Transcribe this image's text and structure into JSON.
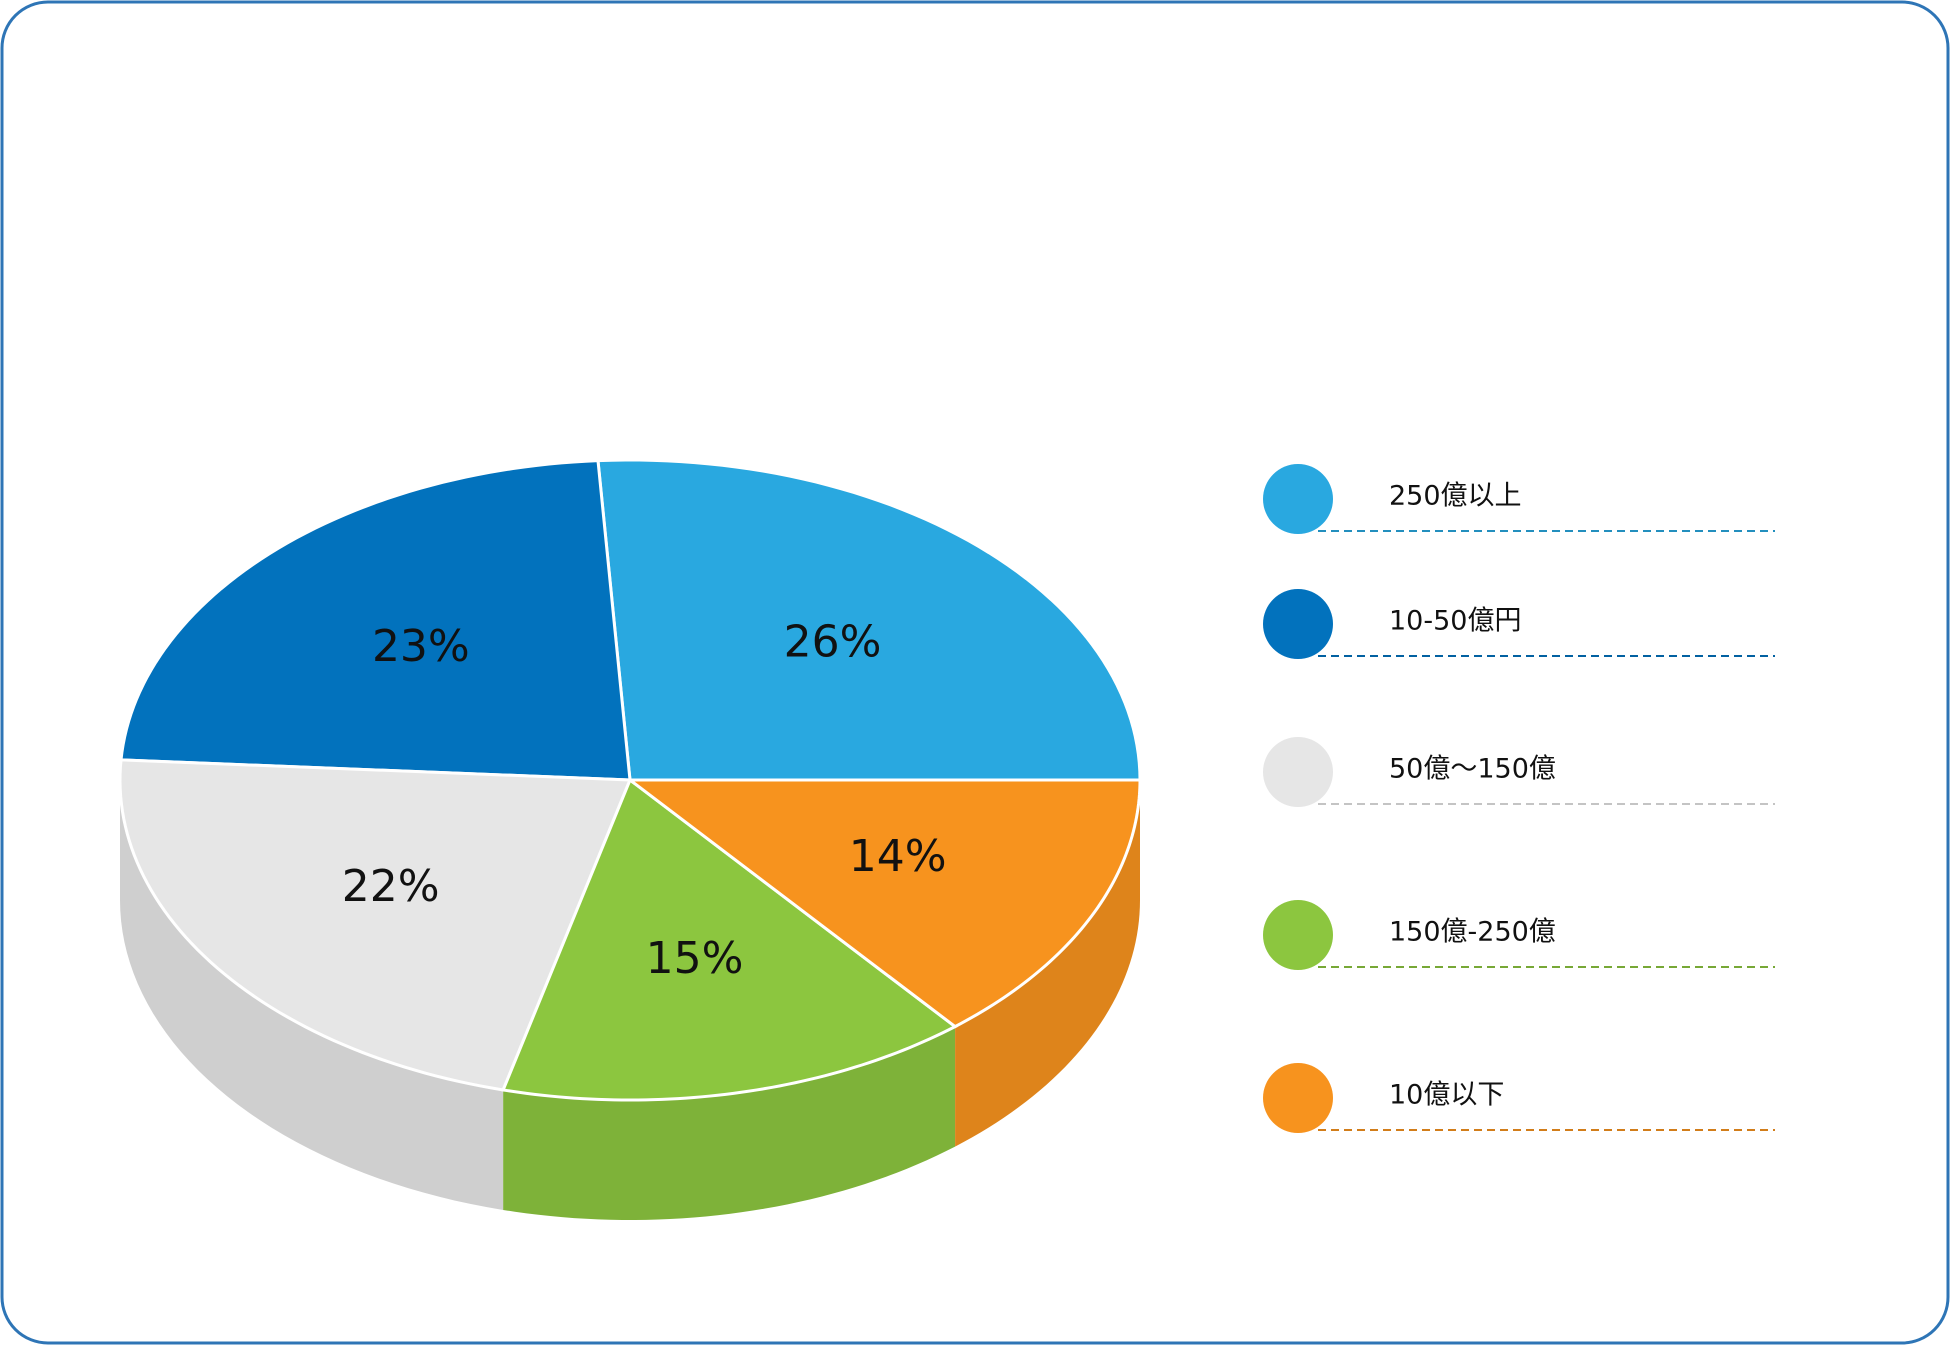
{
  "chart_data": {
    "type": "pie",
    "categories": [
      "250億以上",
      "10-50億円",
      "50億～150億",
      "150億-250億",
      "10億以下"
    ],
    "values": [
      26,
      23,
      22,
      15,
      14
    ],
    "value_labels": [
      "26%",
      "23%",
      "22%",
      "15%",
      "14%"
    ],
    "colors": [
      "#29a8e0",
      "#0272bd",
      "#e6e6e6",
      "#8cc63f",
      "#f7931e"
    ],
    "legend": "right"
  }
}
